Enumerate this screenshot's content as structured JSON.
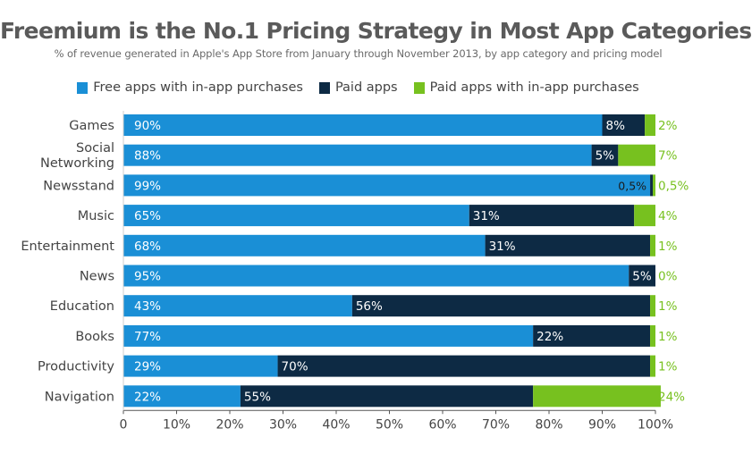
{
  "title": "Freemium is the No.1 Pricing Strategy in Most App Categories",
  "subtitle": "% of revenue generated in Apple's App Store from January through November 2013, by app category and pricing model",
  "colors": {
    "free_iap": "#1a8fd6",
    "paid": "#0d2a44",
    "paid_iap": "#77c11f",
    "axis_text": "#444444",
    "axis_line": "#555555"
  },
  "chart_data": {
    "type": "bar",
    "orientation": "horizontal",
    "stacked": true,
    "categories": [
      [
        "Games"
      ],
      [
        "Social",
        "Networking"
      ],
      [
        "Newsstand"
      ],
      [
        "Music"
      ],
      [
        "Entertainment"
      ],
      [
        "News"
      ],
      [
        "Education"
      ],
      [
        "Books"
      ],
      [
        "Productivity"
      ],
      [
        "Navigation"
      ]
    ],
    "series": [
      {
        "name": "Free apps with in-app purchases",
        "color": "#1a8fd6",
        "values": [
          90,
          88,
          99,
          65,
          68,
          95,
          43,
          77,
          29,
          22
        ],
        "labels": [
          "90%",
          "88%",
          "99%",
          "65%",
          "68%",
          "95%",
          "43%",
          "77%",
          "29%",
          "22%"
        ]
      },
      {
        "name": "Paid apps",
        "color": "#0d2a44",
        "values": [
          8,
          5,
          0.5,
          31,
          31,
          5,
          56,
          22,
          70,
          55
        ],
        "labels": [
          "8%",
          "5%",
          "0,5%",
          "31%",
          "31%",
          "5%",
          "56%",
          "22%",
          "70%",
          "55%"
        ]
      },
      {
        "name": "Paid apps with in-app purchases",
        "color": "#77c11f",
        "values": [
          2,
          7,
          0.5,
          4,
          1,
          0,
          1,
          1,
          1,
          24
        ],
        "labels": [
          "2%",
          "7%",
          "0,5%",
          "4%",
          "1%",
          "0%",
          "1%",
          "1%",
          "1%",
          "24%"
        ]
      }
    ],
    "xlim": [
      0,
      100
    ],
    "xticks": [
      "0",
      "10%",
      "20%",
      "30%",
      "40%",
      "50%",
      "60%",
      "70%",
      "80%",
      "90%",
      "100%"
    ],
    "legend_position": "top-center",
    "grid": false
  }
}
